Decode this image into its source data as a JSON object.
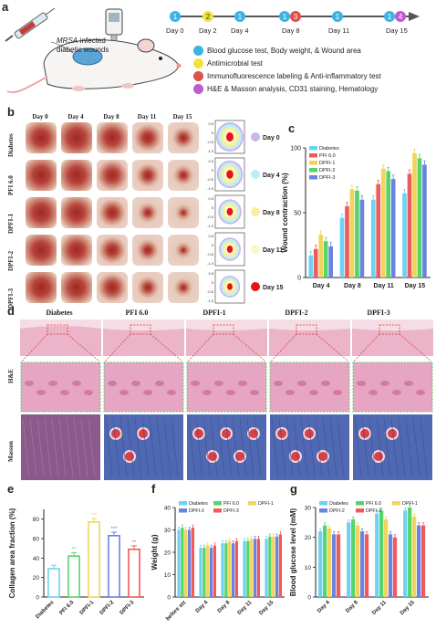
{
  "panel_a": {
    "letter": "a",
    "mouse_caption_italic": "MRSA",
    "mouse_caption_rest": "-infected",
    "mouse_caption_line2": "diabetic wounds",
    "timeline_days": [
      "Day 0",
      "Day 2",
      "Day 4",
      "Day 8",
      "Day 11",
      "Day 15"
    ],
    "legend": [
      {
        "num": "1",
        "color": "#3bb4e5",
        "text": "Blood glucose test, Body weight, & Wound area"
      },
      {
        "num": "2",
        "color": "#f3e23a",
        "text": "Antimicrobial test"
      },
      {
        "num": "3",
        "color": "#e0504a",
        "text": "Immunofluorescence labeling & Anti-inflammatory test"
      },
      {
        "num": "4",
        "color": "#c05ad0",
        "text": "H&E & Masson analysis, CD31 staining, Hematology"
      }
    ]
  },
  "panel_b": {
    "letter": "b",
    "columns": [
      "Day 0",
      "Day 4",
      "Day 8",
      "Day 11",
      "Day 15"
    ],
    "rows": [
      "Diabetes",
      "PFI 6.0",
      "DPFI-1",
      "DPFI-2",
      "DPFI-3"
    ],
    "trace_ticks": [
      "0.5",
      "0",
      "-0.5",
      "-1.0"
    ],
    "trace_legend": [
      {
        "label": "Day 0",
        "color": "#c9b6ea"
      },
      {
        "label": "Day 4",
        "color": "#bdeef7"
      },
      {
        "label": "Day 8",
        "color": "#f7ef9c"
      },
      {
        "label": "Day 11",
        "color": "#fbf7c8"
      },
      {
        "label": "Day 15",
        "color": "#e5141b"
      }
    ]
  },
  "panel_d": {
    "letter": "d",
    "columns": [
      "Diabetes",
      "PFI 6.0",
      "DPFI-1",
      "DPFI-2",
      "DPFI-3"
    ],
    "rows": [
      "H&E",
      "Masson"
    ]
  },
  "chart_data": [
    {
      "panel": "c",
      "type": "bar",
      "ylabel": "Wound contraction (%)",
      "xlabel": "",
      "categories": [
        "Day 4",
        "Day 8",
        "Day 11",
        "Day 15"
      ],
      "ylim": [
        0,
        100
      ],
      "yticks": [
        "0",
        "50",
        "100"
      ],
      "legend_position": "top-left",
      "series": [
        {
          "name": "Diabetes",
          "color": "#6fd1f2",
          "values": [
            17,
            46,
            60,
            65
          ]
        },
        {
          "name": "PFI 6.0",
          "color": "#ef5a5a",
          "values": [
            22,
            55,
            72,
            80
          ]
        },
        {
          "name": "DPFI-1",
          "color": "#f2d35b",
          "values": [
            33,
            68,
            84,
            96
          ]
        },
        {
          "name": "DPFI-2",
          "color": "#57d36b",
          "values": [
            28,
            67,
            82,
            92
          ]
        },
        {
          "name": "DPFI-3",
          "color": "#6b83e0",
          "values": [
            24,
            60,
            76,
            87
          ]
        }
      ]
    },
    {
      "panel": "e",
      "type": "bar",
      "ylabel": "Collagen area fraction (%)",
      "xlabel": "",
      "categories": [
        "Diabetes",
        "PFI 6.0",
        "DPFI-1",
        "DPFI-2",
        "DPFI-3"
      ],
      "ylim": [
        0,
        90
      ],
      "yticks": [
        "0",
        "20",
        "40",
        "60",
        "80"
      ],
      "colors": [
        "#6fd1f2",
        "#57d36b",
        "#f2d35b",
        "#6b83e0",
        "#ef5a5a"
      ],
      "values": [
        29,
        42,
        77,
        63,
        49
      ],
      "sig": [
        "",
        "**",
        "***",
        "***",
        "**"
      ]
    },
    {
      "panel": "f",
      "type": "bar",
      "ylabel": "Weight (g)",
      "xlabel": "",
      "categories": [
        "before stz",
        "Day 4",
        "Day 8",
        "Day 11",
        "Day 15"
      ],
      "ylim": [
        0,
        40
      ],
      "yticks": [
        "0",
        "10",
        "20",
        "30",
        "40"
      ],
      "legend_position": "top",
      "series": [
        {
          "name": "Diabetes",
          "color": "#6fd1f2",
          "values": [
            30,
            22,
            24,
            25,
            26
          ]
        },
        {
          "name": "PFI 6.0",
          "color": "#57d36b",
          "values": [
            31,
            22,
            24,
            25,
            27
          ]
        },
        {
          "name": "DPFI-1",
          "color": "#f2d35b",
          "values": [
            30,
            23,
            25,
            26,
            27
          ]
        },
        {
          "name": "DPFI-2",
          "color": "#6b83e0",
          "values": [
            30,
            22,
            24,
            26,
            27
          ]
        },
        {
          "name": "DPFI-3",
          "color": "#ef5a5a",
          "values": [
            31,
            23,
            25,
            26,
            28
          ]
        }
      ]
    },
    {
      "panel": "g",
      "type": "bar",
      "ylabel": "Blood glucose level (mM)",
      "xlabel": "",
      "categories": [
        "Day 4",
        "Day 8",
        "Day 11",
        "Day 15"
      ],
      "ylim": [
        0,
        30
      ],
      "yticks": [
        "0",
        "10",
        "20",
        "30"
      ],
      "legend_position": "top",
      "series": [
        {
          "name": "Diabetes",
          "color": "#6fd1f2",
          "values": [
            22,
            25,
            28,
            29
          ]
        },
        {
          "name": "PFI 6.0",
          "color": "#57d36b",
          "values": [
            24,
            26,
            29,
            30
          ]
        },
        {
          "name": "DPFI-1",
          "color": "#f2d35b",
          "values": [
            23,
            24,
            26,
            27
          ]
        },
        {
          "name": "DPFI-2",
          "color": "#6b83e0",
          "values": [
            21,
            22,
            21,
            24
          ]
        },
        {
          "name": "DPFI-3",
          "color": "#ef5a5a",
          "values": [
            21,
            21,
            20,
            24
          ]
        }
      ]
    }
  ]
}
